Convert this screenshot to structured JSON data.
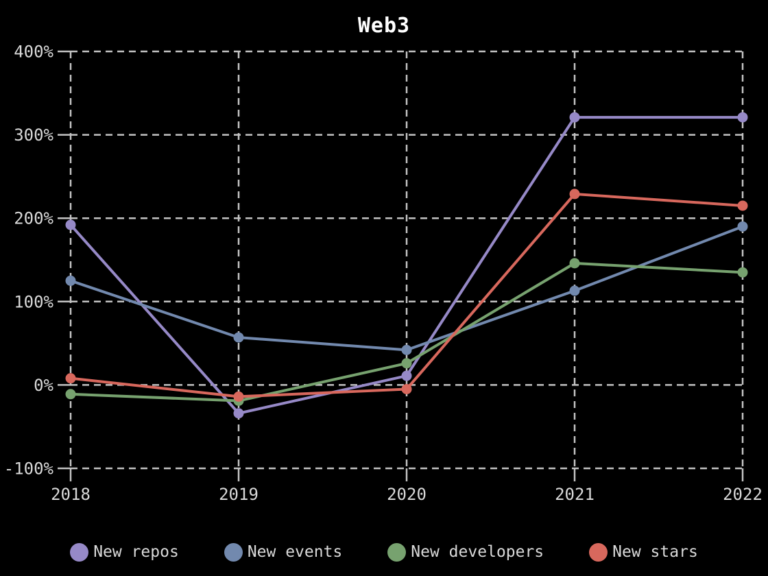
{
  "page": {
    "background_color": "#000000",
    "text_color": "#d9d9d9",
    "title_color": "#ffffff"
  },
  "chart_data": {
    "type": "line",
    "title": "Web3",
    "xlabel": "",
    "ylabel": "",
    "unit": "%",
    "categories": [
      "2018",
      "2019",
      "2020",
      "2021",
      "2022"
    ],
    "series": [
      {
        "name": "New repos",
        "color": "#9689c7",
        "values": [
          192,
          -34,
          11,
          321,
          321
        ]
      },
      {
        "name": "New events",
        "color": "#7289ae",
        "values": [
          125,
          57,
          42,
          113,
          190
        ]
      },
      {
        "name": "New developers",
        "color": "#77a26f",
        "values": [
          -11,
          -19,
          26,
          146,
          135
        ]
      },
      {
        "name": "New stars",
        "color": "#d8685d",
        "values": [
          8,
          -14,
          -5,
          229,
          215
        ]
      }
    ],
    "y_axis": {
      "min": -100,
      "max": 400,
      "tick_step": 100,
      "tick_labels": [
        "400%",
        "300%",
        "200%",
        "100%",
        "0%",
        "-100%"
      ]
    },
    "grid": {
      "style": "dashed",
      "color": "#c3c3c3",
      "on": true
    },
    "legend_position": "bottom",
    "marker": "circle"
  }
}
